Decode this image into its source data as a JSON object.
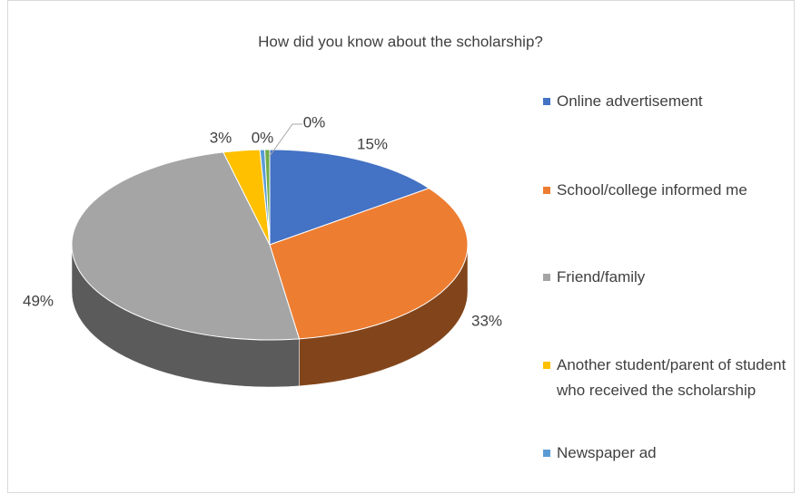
{
  "chart_data": {
    "type": "pie3d",
    "title": "How did you know about the scholarship?",
    "categories": [
      "Online advertisement",
      "School/college informed me",
      "Friend/family",
      "Another student/parent of student who received the scholarship",
      "Newspaper ad",
      null
    ],
    "values": [
      15,
      33,
      49,
      3,
      0.4,
      0.4
    ],
    "value_labels": [
      "15%",
      "33%",
      "49%",
      "3%",
      "0%",
      "0%"
    ],
    "colors": [
      "#4472c4",
      "#ed7d31",
      "#a5a5a5",
      "#ffc000",
      "#5b9bd5",
      "#70ad47"
    ],
    "legend": "right"
  }
}
